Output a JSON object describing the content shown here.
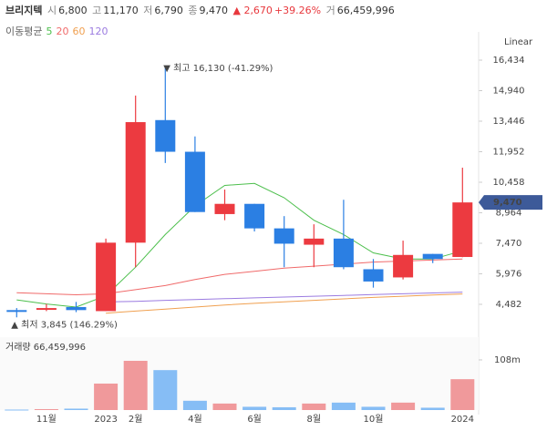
{
  "header": {
    "name": "브리지텍",
    "open_label": "시",
    "open": "6,800",
    "high_label": "고",
    "high": "11,170",
    "low_label": "저",
    "low": "6,790",
    "close_label": "종",
    "close": "9,470",
    "change": "▲ 2,670",
    "change_pct": "+39.26%",
    "volume_label": "거",
    "volume": "66,459,996"
  },
  "chart_data": [
    {
      "type": "candlestick",
      "scale": "Linear",
      "legend_title": "이동평균",
      "categories": [
        null,
        "11월",
        null,
        "2023",
        "2월",
        null,
        "4월",
        null,
        "6월",
        null,
        "8월",
        null,
        "10월",
        null,
        null,
        "2024"
      ],
      "open": [
        4200,
        4250,
        4350,
        4150,
        7500,
        13500,
        11950,
        8900,
        9400,
        8200,
        7400,
        7700,
        6200,
        5800,
        6950,
        6800
      ],
      "high": [
        4300,
        4500,
        4600,
        7700,
        14700,
        16130,
        12700,
        10100,
        9400,
        8800,
        8400,
        9600,
        6700,
        7600,
        6950,
        11170
      ],
      "low": [
        3845,
        4150,
        4100,
        4150,
        6300,
        11400,
        9000,
        8600,
        8050,
        6300,
        6300,
        6200,
        5300,
        5700,
        6500,
        6790
      ],
      "close": [
        4150,
        4300,
        4200,
        7500,
        13400,
        11950,
        9000,
        9400,
        8200,
        7450,
        7700,
        6300,
        5600,
        6900,
        6700,
        9470
      ],
      "up_color": "#ec3a40",
      "down_color": "#2b7fe3",
      "moving_averages": [
        {
          "name": "5",
          "color": "#4cbf4c",
          "values": [
            4700,
            4500,
            4350,
            4900,
            6300,
            7900,
            9300,
            10300,
            10400,
            9700,
            8600,
            7900,
            7000,
            6700,
            6700,
            7100
          ]
        },
        {
          "name": "20",
          "color": "#f06a6a",
          "values": [
            5050,
            5000,
            4950,
            5000,
            5200,
            5400,
            5700,
            5950,
            6100,
            6250,
            6350,
            6450,
            6550,
            6600,
            6650,
            6700
          ]
        },
        {
          "name": "60",
          "color": "#f0a050",
          "values": [
            null,
            null,
            null,
            4050,
            4150,
            4250,
            4350,
            4450,
            4530,
            4600,
            4680,
            4750,
            4820,
            4880,
            4940,
            4990
          ]
        },
        {
          "name": "120",
          "color": "#9b7be0",
          "values": [
            null,
            null,
            null,
            4600,
            4630,
            4680,
            4720,
            4760,
            4800,
            4840,
            4880,
            4920,
            4960,
            5000,
            5040,
            5080
          ]
        }
      ],
      "ylim": [
        3545,
        16925
      ],
      "yticks": [
        {
          "value": 4482,
          "label": "4,482"
        },
        {
          "value": 5976,
          "label": "5,976"
        },
        {
          "value": 7470,
          "label": "7,470"
        },
        {
          "value": 8964,
          "label": "8,964"
        },
        {
          "value": 10458,
          "label": "10,458"
        },
        {
          "value": 11952,
          "label": "11,952"
        },
        {
          "value": 13446,
          "label": "13,446"
        },
        {
          "value": 14940,
          "label": "14,940"
        },
        {
          "value": 16434,
          "label": "16,434"
        }
      ],
      "annotations": [
        "▼ 최고 16,130 (-41.29%)",
        "▲ 최저 3,845 (146.29%)",
        "9,470"
      ]
    },
    {
      "type": "bar",
      "title": "거래량 66,459,996",
      "values": [
        1000000,
        2000000,
        3000000,
        57000000,
        106000000,
        86000000,
        20000000,
        14000000,
        7000000,
        6000000,
        14000000,
        16000000,
        7000000,
        16000000,
        5000000,
        66459996
      ],
      "colors": [
        "#86bdf5",
        "#f0999b",
        "#86bdf5",
        "#f0999b",
        "#f0999b",
        "#86bdf5",
        "#86bdf5",
        "#f0999b",
        "#86bdf5",
        "#86bdf5",
        "#f0999b",
        "#86bdf5",
        "#86bdf5",
        "#f0999b",
        "#86bdf5",
        "#f0999b"
      ],
      "ylim": [
        0,
        157000000
      ],
      "yticks": [
        {
          "value": 108000000,
          "label": "108m"
        }
      ]
    }
  ]
}
